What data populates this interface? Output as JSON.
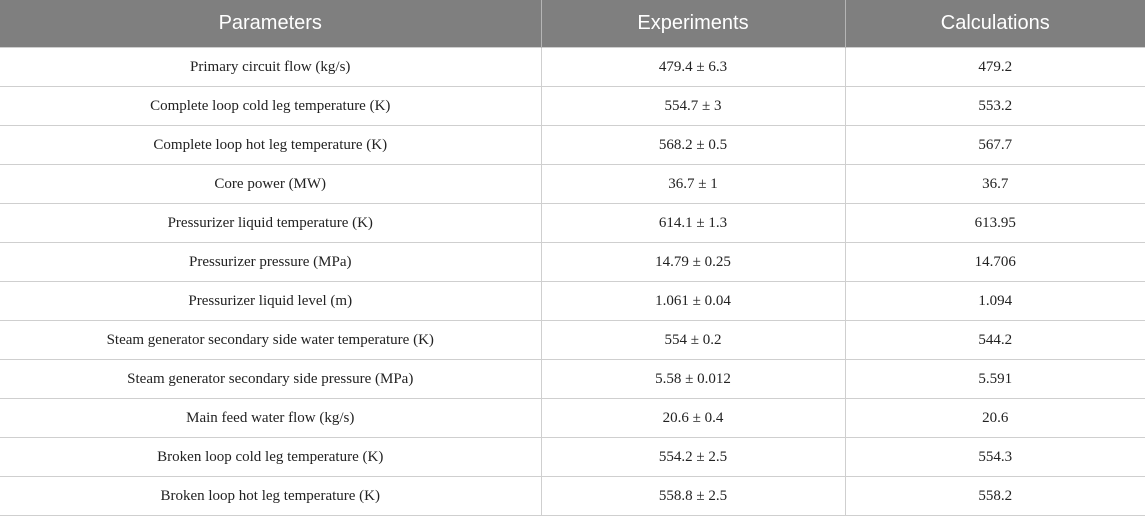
{
  "table": {
    "headers": [
      "Parameters",
      "Experiments",
      "Calculations"
    ],
    "rows": [
      [
        "Primary circuit flow (kg/s)",
        "479.4 ± 6.3",
        "479.2"
      ],
      [
        "Complete loop cold leg temperature (K)",
        "554.7 ± 3",
        "553.2"
      ],
      [
        "Complete loop hot leg temperature (K)",
        "568.2 ± 0.5",
        "567.7"
      ],
      [
        "Core power (MW)",
        "36.7 ± 1",
        "36.7"
      ],
      [
        "Pressurizer liquid temperature (K)",
        "614.1 ± 1.3",
        "613.95"
      ],
      [
        "Pressurizer pressure (MPa)",
        "14.79 ± 0.25",
        "14.706"
      ],
      [
        "Pressurizer liquid level (m)",
        "1.061 ± 0.04",
        "1.094"
      ],
      [
        "Steam generator secondary side water temperature (K)",
        "554 ± 0.2",
        "544.2"
      ],
      [
        "Steam generator secondary side pressure (MPa)",
        "5.58 ± 0.012",
        "5.591"
      ],
      [
        "Main feed water flow (kg/s)",
        "20.6 ± 0.4",
        "20.6"
      ],
      [
        "Broken loop cold leg temperature (K)",
        "554.2 ± 2.5",
        "554.3"
      ],
      [
        "Broken loop hot leg temperature (K)",
        "558.8 ± 2.5",
        "558.2"
      ]
    ]
  }
}
